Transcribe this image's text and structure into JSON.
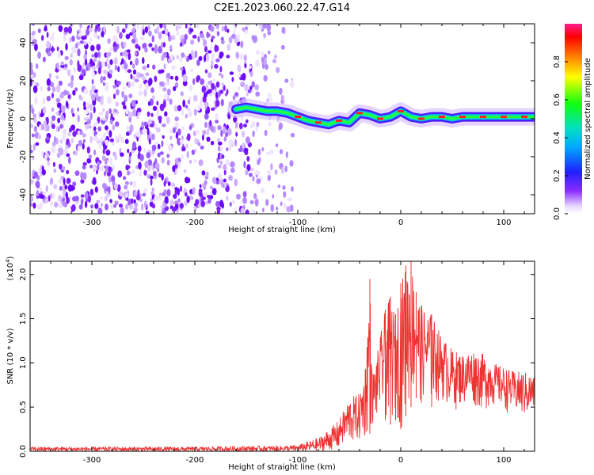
{
  "figure_title": "C2E1.2023.060.22.47.G14",
  "chart_data": [
    {
      "type": "heatmap",
      "title": "C2E1.2023.060.22.47.G14",
      "xlabel": "Height of straight line (km)",
      "ylabel": "Frequency (Hz)",
      "xlim": [
        -360,
        130
      ],
      "ylim": [
        -50,
        50
      ],
      "x_ticks": [
        -300,
        -200,
        -100,
        0,
        100
      ],
      "x_tick_labels": [
        "-300",
        "-200",
        "-100",
        "0",
        "100"
      ],
      "y_ticks": [
        -40,
        -20,
        0,
        20,
        40
      ],
      "y_tick_labels": [
        "-40",
        "-20",
        "0",
        "20",
        "40"
      ],
      "colorbar": {
        "label": "Normalized spectral amplitude",
        "range": [
          0,
          1
        ],
        "ticks": [
          0.0,
          0.2,
          0.4,
          0.6,
          0.8
        ],
        "tick_labels": [
          "0.0",
          "0.2",
          "0.4",
          "0.6",
          "0.8"
        ],
        "colormap": "rainbow"
      },
      "noise_region_x": [
        -360,
        -105
      ],
      "signal_trace": {
        "x": [
          -160,
          -150,
          -140,
          -130,
          -120,
          -110,
          -100,
          -90,
          -80,
          -70,
          -60,
          -50,
          -40,
          -30,
          -20,
          -10,
          0,
          10,
          20,
          30,
          40,
          50,
          60,
          70,
          80,
          90,
          100,
          110,
          120,
          130
        ],
        "frequency": [
          5,
          6,
          5,
          4,
          4,
          3,
          1,
          -1,
          -2,
          -3,
          -1,
          -2,
          3,
          2,
          0,
          1,
          4,
          1,
          0,
          1,
          1,
          0,
          1,
          1,
          1,
          1,
          1,
          1,
          1,
          1
        ]
      }
    },
    {
      "type": "line",
      "title": "",
      "xlabel": "Height of straight line (km)",
      "ylabel": "SNR (10 * v/v)",
      "y_multiplier_label": "(x10",
      "y_multiplier_exp": "4",
      "xlim": [
        -360,
        130
      ],
      "ylim": [
        0,
        2.15
      ],
      "x_ticks": [
        -300,
        -200,
        -100,
        0,
        100
      ],
      "x_tick_labels": [
        "-300",
        "-200",
        "-100",
        "0",
        "100"
      ],
      "y_ticks": [
        0,
        0.5,
        1.0,
        1.5,
        2.0
      ],
      "y_tick_labels": [
        "0.0",
        "0.5",
        "1.0",
        "1.5",
        "2.0"
      ],
      "line_color": "#ee3333",
      "series": [
        {
          "x": [
            -360,
            -300,
            -200,
            -150,
            -120,
            -100,
            -80,
            -60,
            -50,
            -40,
            -35,
            -30,
            -28,
            -25,
            -20,
            -15,
            -10,
            -5,
            0,
            5,
            10,
            15,
            20,
            30,
            40,
            50,
            60,
            70,
            80,
            90,
            100,
            110,
            120,
            130
          ],
          "envelope_max": [
            0.05,
            0.05,
            0.05,
            0.06,
            0.06,
            0.07,
            0.15,
            0.35,
            0.6,
            0.65,
            0.9,
            1.95,
            0.9,
            0.95,
            1.3,
            1.6,
            1.75,
            1.55,
            1.9,
            2.1,
            2.15,
            1.8,
            1.65,
            1.55,
            1.3,
            1.15,
            1.1,
            1.15,
            1.1,
            1.0,
            0.95,
            0.9,
            0.9,
            0.85
          ],
          "envelope_min": [
            0.0,
            0.0,
            0.0,
            0.0,
            0.0,
            0.0,
            0.0,
            0.03,
            0.05,
            0.08,
            0.1,
            0.2,
            0.25,
            0.3,
            0.35,
            0.35,
            0.3,
            0.35,
            0.25,
            0.4,
            0.5,
            0.6,
            0.55,
            0.5,
            0.55,
            0.45,
            0.5,
            0.5,
            0.45,
            0.5,
            0.45,
            0.4,
            0.35,
            0.4
          ]
        }
      ]
    }
  ]
}
